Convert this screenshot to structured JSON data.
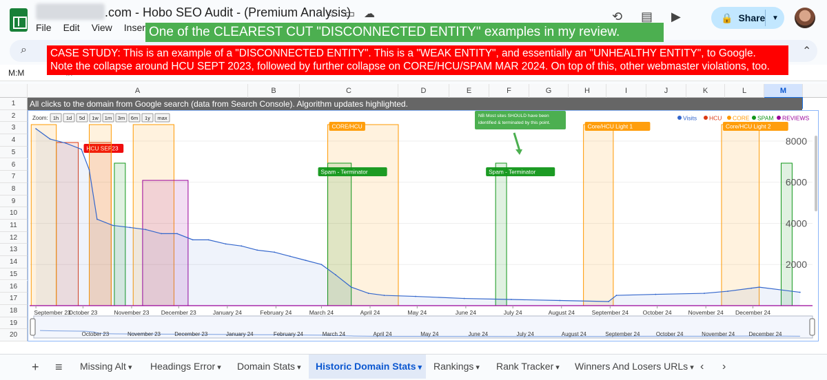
{
  "window": {
    "doc_title": ".com - Hobo SEO Audit - (Premium Analysis)",
    "menus": [
      "File",
      "Edit",
      "View",
      "Insert",
      "F"
    ],
    "share_label": "Share",
    "name_box": "M:M",
    "fx": "fx"
  },
  "banners": {
    "green": "One of the CLEAREST CUT \"DISCONNECTED ENTITY\" examples in my review.",
    "red_line1": "CASE STUDY: This is an example of a \"DISCONNECTED ENTITY\". This is a \"WEAK ENTITY\", and essentially an \"UNHEALTHY ENTITY\", to Google.",
    "red_line2": "Note the collapse around HCU SEPT 2023, followed by further collapse on CORE/HCU/SPAM MAR 2024. On top of this, other webmaster violations, too."
  },
  "columns": [
    "A",
    "B",
    "C",
    "D",
    "E",
    "F",
    "G",
    "H",
    "I",
    "J",
    "K",
    "L",
    "M"
  ],
  "rows": [
    "1",
    "2",
    "3",
    "4",
    "5",
    "6",
    "7",
    "8",
    "9",
    "10",
    "11",
    "12",
    "13",
    "14",
    "15",
    "16",
    "17",
    "18",
    "19",
    "20"
  ],
  "chart_header": "All clicks to the domain from Google search (data from Search Console). Algorithm updates highlighted.",
  "sheet_tabs": [
    "Missing Alt",
    "Headings Error",
    "Domain Stats",
    "Historic Domain Stats",
    "Rankings",
    "Rank Tracker",
    "Winners And Losers URLs"
  ],
  "active_tab": "Historic Domain Stats",
  "colors": {
    "visits": "#3366cc",
    "hcu": "#dc3912",
    "core": "#ff9900",
    "spam": "#109618",
    "reviews": "#990099"
  },
  "chart_data": {
    "type": "area",
    "zoom_label": "Zoom:",
    "zoom_buttons": [
      "1h",
      "1d",
      "5d",
      "1w",
      "1m",
      "3m",
      "6m",
      "1y",
      "max"
    ],
    "legend": [
      "Visits",
      "HCU",
      "CORE",
      "SPAM",
      "REVIEWS"
    ],
    "y_ticks": [
      "2000",
      "4000",
      "6000",
      "8000"
    ],
    "ylim": [
      0,
      8800
    ],
    "x_ticks": [
      "September 23",
      "October 23",
      "November 23",
      "December 23",
      "January 24",
      "February 24",
      "March 24",
      "April 24",
      "May 24",
      "June 24",
      "July 24",
      "August 24",
      "September 24",
      "October 24",
      "November 24",
      "December 24"
    ],
    "range_ticks": [
      "October 23",
      "November 23",
      "December 23",
      "January 24",
      "February 24",
      "March 24",
      "April 24",
      "May 24",
      "June 24",
      "July 24",
      "August 24",
      "September 24",
      "October 24",
      "November 24",
      "December 24"
    ],
    "series_visits": [
      [
        "2023-09-01",
        8600
      ],
      [
        "2023-09-10",
        8100
      ],
      [
        "2023-09-20",
        7900
      ],
      [
        "2023-09-30",
        7600
      ],
      [
        "2023-10-05",
        6600
      ],
      [
        "2023-10-10",
        4200
      ],
      [
        "2023-10-20",
        3900
      ],
      [
        "2023-10-31",
        3800
      ],
      [
        "2023-11-10",
        3700
      ],
      [
        "2023-11-20",
        3500
      ],
      [
        "2023-11-30",
        3500
      ],
      [
        "2023-12-10",
        3200
      ],
      [
        "2023-12-20",
        3200
      ],
      [
        "2023-12-31",
        3000
      ],
      [
        "2024-01-10",
        2900
      ],
      [
        "2024-01-20",
        2700
      ],
      [
        "2024-01-31",
        2600
      ],
      [
        "2024-02-10",
        2400
      ],
      [
        "2024-02-20",
        2200
      ],
      [
        "2024-03-01",
        2000
      ],
      [
        "2024-03-10",
        1500
      ],
      [
        "2024-03-20",
        900
      ],
      [
        "2024-03-31",
        600
      ],
      [
        "2024-04-10",
        500
      ],
      [
        "2024-04-30",
        450
      ],
      [
        "2024-05-31",
        350
      ],
      [
        "2024-06-30",
        300
      ],
      [
        "2024-07-31",
        250
      ],
      [
        "2024-08-31",
        200
      ],
      [
        "2024-09-05",
        500
      ],
      [
        "2024-09-30",
        550
      ],
      [
        "2024-10-31",
        600
      ],
      [
        "2024-11-15",
        700
      ],
      [
        "2024-11-30",
        850
      ],
      [
        "2024-12-05",
        900
      ],
      [
        "2024-12-31",
        650
      ]
    ],
    "bands": [
      {
        "type": "hcu",
        "start": "2023-09-14",
        "end": "2023-09-28",
        "label": ""
      },
      {
        "type": "hcu",
        "start": "2023-10-05",
        "end": "2023-10-19",
        "label": "HCU SEP23"
      },
      {
        "type": "core",
        "start": "2023-08-29",
        "end": "2023-09-14",
        "label": ""
      },
      {
        "type": "core",
        "start": "2023-10-05",
        "end": "2023-10-19",
        "label": ""
      },
      {
        "type": "spam",
        "start": "2023-10-21",
        "end": "2023-10-28",
        "label": ""
      },
      {
        "type": "core",
        "start": "2023-11-02",
        "end": "2023-11-28",
        "label": ""
      },
      {
        "type": "reviews",
        "start": "2023-11-08",
        "end": "2023-12-07",
        "label": ""
      },
      {
        "type": "core",
        "start": "2024-03-05",
        "end": "2024-04-19",
        "label": "CORE/HCU"
      },
      {
        "type": "spam",
        "start": "2024-03-05",
        "end": "2024-03-20",
        "label": "Spam - Terminator"
      },
      {
        "type": "spam",
        "start": "2024-06-20",
        "end": "2024-06-27",
        "label": "Spam - Terminator"
      },
      {
        "type": "core",
        "start": "2024-08-15",
        "end": "2024-09-03",
        "label": "Core/HCU Light 1"
      },
      {
        "type": "core",
        "start": "2024-11-11",
        "end": "2024-12-05",
        "label": "Core/HCU Light 2"
      },
      {
        "type": "spam",
        "start": "2024-12-19",
        "end": "2024-12-26",
        "label": ""
      }
    ],
    "annotation": "NB Most sites SHOULD have been identified & terminated by this point."
  }
}
